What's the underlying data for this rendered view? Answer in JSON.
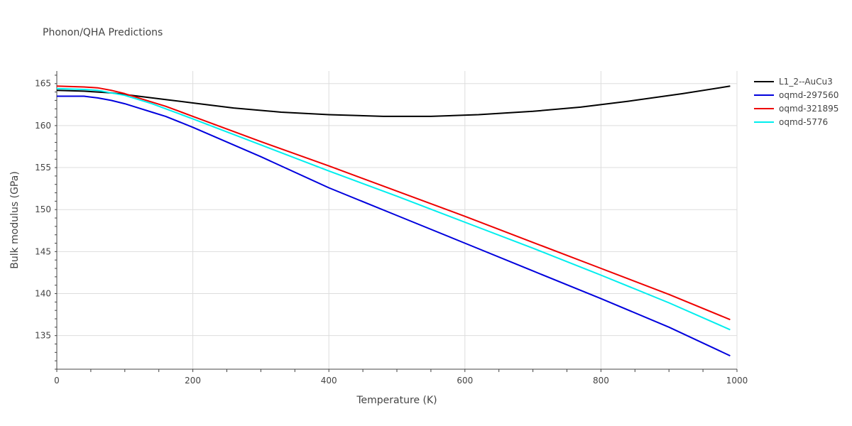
{
  "chart_data": {
    "type": "line",
    "title": "Phonon/QHA Predictions",
    "xlabel": "Temperature (K)",
    "ylabel": "Bulk modulus (GPa)",
    "xlim": [
      0,
      1000
    ],
    "ylim": [
      131,
      166.5
    ],
    "xticks": [
      0,
      200,
      400,
      600,
      800,
      1000
    ],
    "xtick_labels": [
      "0",
      "200",
      "400",
      "600",
      "800",
      "1000"
    ],
    "yticks": [
      135,
      140,
      145,
      150,
      155,
      160,
      165
    ],
    "ytick_labels": [
      "135",
      "140",
      "145",
      "150",
      "155",
      "160",
      "165"
    ],
    "grid": true,
    "legend_position": "top-right",
    "series": [
      {
        "name": "L1_2--AuCu3",
        "color": "#000000",
        "x": [
          0,
          40,
          80,
          120,
          160,
          200,
          260,
          330,
          400,
          480,
          550,
          620,
          700,
          770,
          840,
          920,
          990
        ],
        "y": [
          164.2,
          164.1,
          163.9,
          163.5,
          163.1,
          162.7,
          162.1,
          161.6,
          161.3,
          161.1,
          161.1,
          161.3,
          161.7,
          162.2,
          162.9,
          163.8,
          164.7
        ]
      },
      {
        "name": "oqmd-297560",
        "color": "#0000dd",
        "x": [
          0,
          40,
          60,
          80,
          100,
          120,
          140,
          160,
          200,
          300,
          400,
          500,
          600,
          700,
          800,
          900,
          990
        ],
        "y": [
          163.5,
          163.5,
          163.3,
          163.0,
          162.6,
          162.1,
          161.6,
          161.1,
          159.8,
          156.3,
          152.6,
          149.3,
          146.0,
          142.7,
          139.4,
          136.0,
          132.6
        ]
      },
      {
        "name": "oqmd-321895",
        "color": "#ee0000",
        "x": [
          0,
          40,
          60,
          80,
          100,
          120,
          140,
          160,
          200,
          300,
          400,
          500,
          600,
          700,
          800,
          900,
          990
        ],
        "y": [
          164.7,
          164.6,
          164.5,
          164.2,
          163.8,
          163.3,
          162.8,
          162.3,
          161.1,
          158.1,
          155.2,
          152.2,
          149.2,
          146.1,
          143.0,
          139.9,
          136.9
        ]
      },
      {
        "name": "oqmd-5776",
        "color": "#00eeee",
        "x": [
          0,
          40,
          60,
          80,
          100,
          120,
          140,
          160,
          200,
          300,
          400,
          500,
          600,
          700,
          800,
          900,
          990
        ],
        "y": [
          164.4,
          164.3,
          164.2,
          163.9,
          163.6,
          163.1,
          162.6,
          162.0,
          160.8,
          157.7,
          154.6,
          151.6,
          148.5,
          145.4,
          142.2,
          138.9,
          135.7
        ]
      }
    ]
  }
}
